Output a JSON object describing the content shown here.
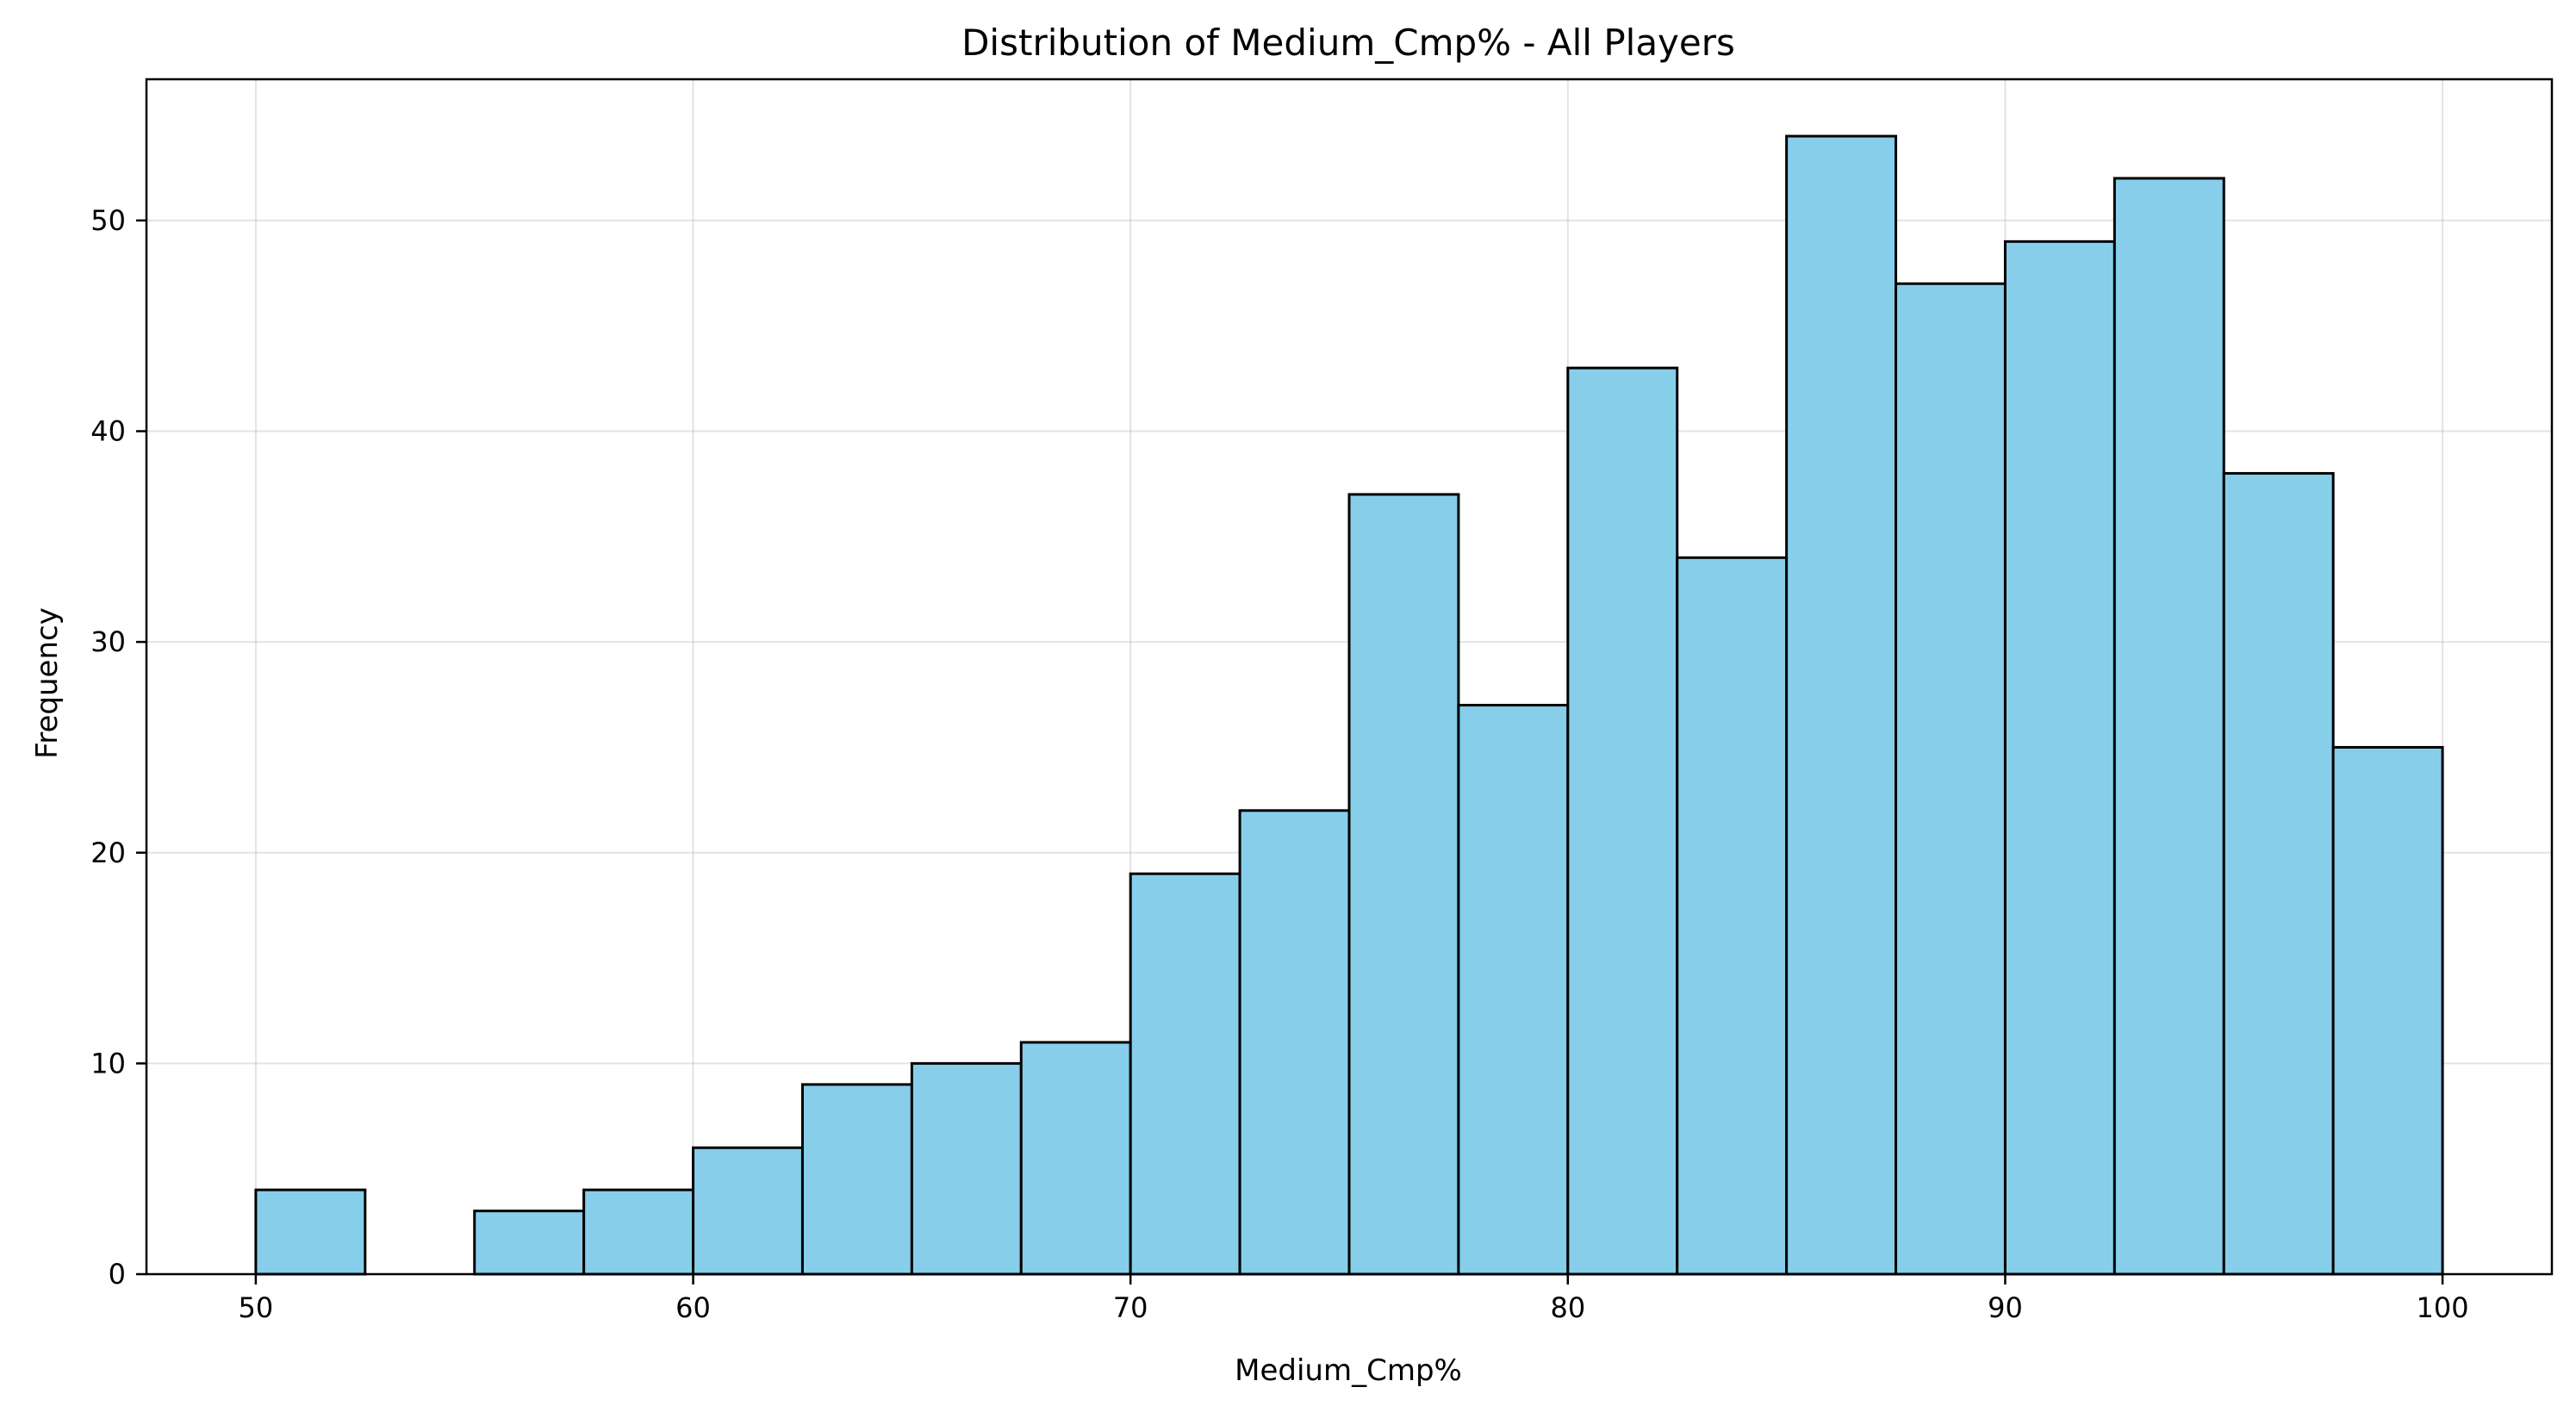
{
  "chart_data": {
    "type": "bar",
    "title": "Distribution of Medium_Cmp% - All Players",
    "xlabel": "Medium_Cmp%",
    "ylabel": "Frequency",
    "xlim": [
      47.5,
      102.5
    ],
    "ylim": [
      0,
      56.7
    ],
    "xticks": [
      50,
      60,
      70,
      80,
      90,
      100
    ],
    "yticks": [
      0,
      10,
      20,
      30,
      40,
      50
    ],
    "grid": true,
    "bar_color": "#87CEEB",
    "edge_color": "#000000",
    "bins": [
      {
        "start": 50.0,
        "end": 52.5,
        "count": 4
      },
      {
        "start": 52.5,
        "end": 55.0,
        "count": 0
      },
      {
        "start": 55.0,
        "end": 57.5,
        "count": 3
      },
      {
        "start": 57.5,
        "end": 60.0,
        "count": 4
      },
      {
        "start": 60.0,
        "end": 62.5,
        "count": 6
      },
      {
        "start": 62.5,
        "end": 65.0,
        "count": 9
      },
      {
        "start": 65.0,
        "end": 67.5,
        "count": 10
      },
      {
        "start": 67.5,
        "end": 70.0,
        "count": 11
      },
      {
        "start": 70.0,
        "end": 72.5,
        "count": 19
      },
      {
        "start": 72.5,
        "end": 75.0,
        "count": 22
      },
      {
        "start": 75.0,
        "end": 77.5,
        "count": 37
      },
      {
        "start": 77.5,
        "end": 80.0,
        "count": 27
      },
      {
        "start": 80.0,
        "end": 82.5,
        "count": 43
      },
      {
        "start": 82.5,
        "end": 85.0,
        "count": 34
      },
      {
        "start": 85.0,
        "end": 87.5,
        "count": 54
      },
      {
        "start": 87.5,
        "end": 90.0,
        "count": 47
      },
      {
        "start": 90.0,
        "end": 92.5,
        "count": 49
      },
      {
        "start": 92.5,
        "end": 95.0,
        "count": 52
      },
      {
        "start": 95.0,
        "end": 97.5,
        "count": 38
      },
      {
        "start": 97.5,
        "end": 100.0,
        "count": 25
      }
    ]
  }
}
